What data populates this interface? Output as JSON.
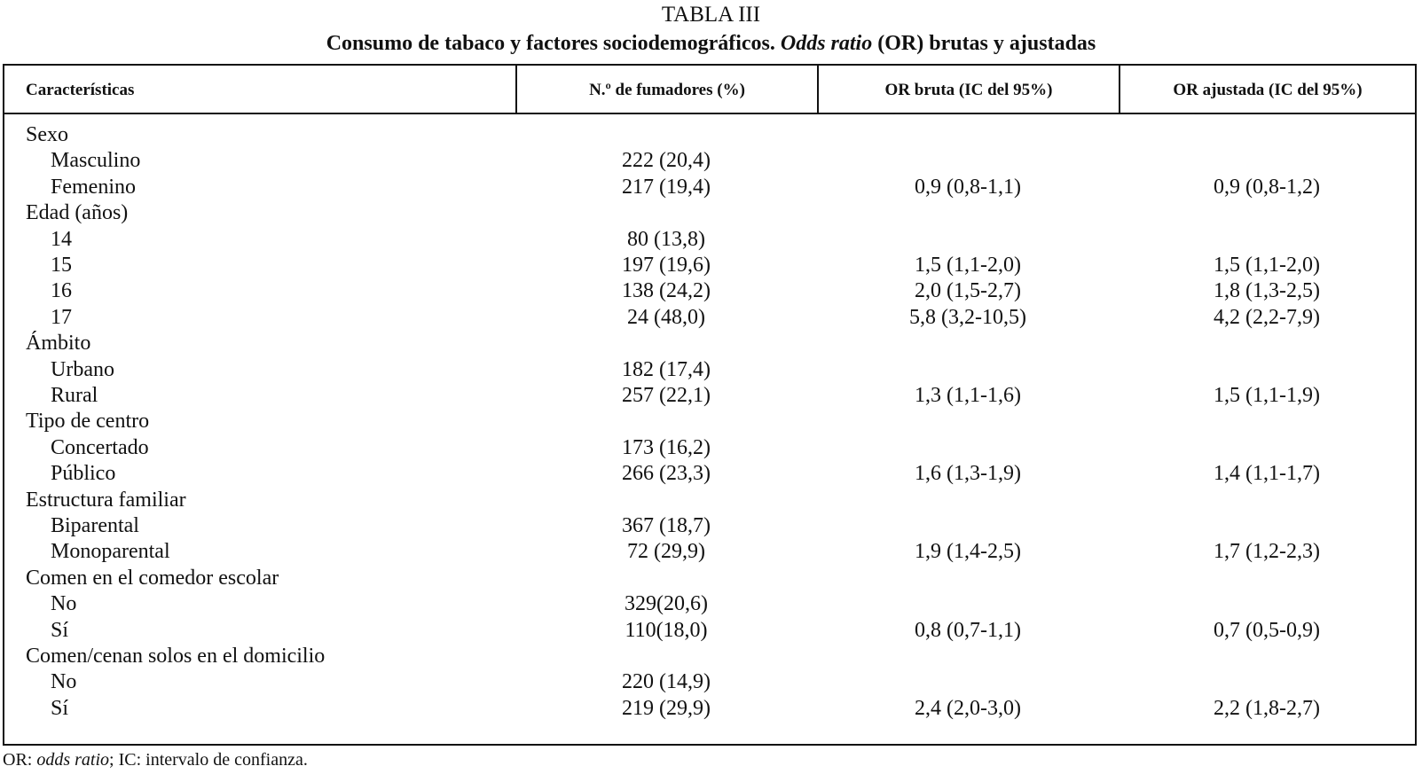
{
  "title": "TABLA III",
  "subtitle": [
    "Consumo de tabaco y factores sociodemográficos. ",
    "Odds ratio",
    " (OR) brutas y ajustadas"
  ],
  "table": {
    "header": [
      "Características",
      "N.º de fumadores (%)",
      "OR bruta (IC del 95%)",
      "OR ajustada (IC del 95%)"
    ],
    "groups": [
      {
        "label": "Sexo",
        "rows": [
          [
            "Masculino",
            "222 (20,4)",
            null,
            null
          ],
          [
            "Femenino",
            "217 (19,4)",
            "0,9 (0,8-1,1)",
            "0,9 (0,8-1,2)"
          ]
        ]
      },
      {
        "label": "Edad (años)",
        "rows": [
          [
            "14",
            "80 (13,8)",
            null,
            null
          ],
          [
            "15",
            "197 (19,6)",
            "1,5 (1,1-2,0)",
            "1,5 (1,1-2,0)"
          ],
          [
            "16",
            "138 (24,2)",
            "2,0 (1,5-2,7)",
            "1,8 (1,3-2,5)"
          ],
          [
            "17",
            "24 (48,0)",
            "5,8 (3,2-10,5)",
            "4,2 (2,2-7,9)"
          ]
        ]
      },
      {
        "label": "Ámbito",
        "rows": [
          [
            "Urbano",
            "182 (17,4)",
            null,
            null
          ],
          [
            "Rural",
            "257 (22,1)",
            "1,3 (1,1-1,6)",
            "1,5 (1,1-1,9)"
          ]
        ]
      },
      {
        "label": "Tipo de centro",
        "rows": [
          [
            "Concertado",
            "173 (16,2)",
            null,
            null
          ],
          [
            "Público",
            "266 (23,3)",
            "1,6 (1,3-1,9)",
            "1,4 (1,1-1,7)"
          ]
        ]
      },
      {
        "label": "Estructura familiar",
        "rows": [
          [
            "Biparental",
            "367 (18,7)",
            null,
            null
          ],
          [
            "Monoparental",
            "72 (29,9)",
            "1,9 (1,4-2,5)",
            "1,7 (1,2-2,3)"
          ]
        ]
      },
      {
        "label": "Comen en el comedor escolar",
        "rows": [
          [
            "No",
            "329(20,6)",
            null,
            null
          ],
          [
            "Sí",
            "110(18,0)",
            "0,8 (0,7-1,1)",
            "0,7 (0,5-0,9)"
          ]
        ]
      },
      {
        "label": "Comen/cenan solos en el domicilio",
        "rows": [
          [
            "No",
            "220 (14,9)",
            null,
            null
          ],
          [
            "Sí",
            "219 (29,9)",
            "2,4 (2,0-3,0)",
            "2,2 (1,8-2,7)"
          ]
        ]
      }
    ]
  },
  "footnote": [
    "OR: ",
    "odds ratio",
    "; IC: intervalo de confianza."
  ]
}
